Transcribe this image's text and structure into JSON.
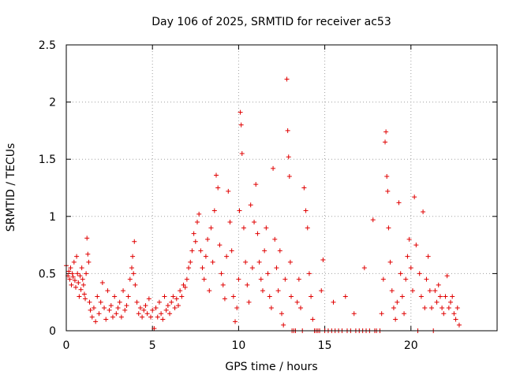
{
  "chart_data": {
    "type": "scatter",
    "title": "Day 106 of 2025, SRMTID for receiver ac53",
    "xlabel": "GPS time / hours",
    "ylabel": "SRMTID / TECUs",
    "xlim": [
      0,
      25
    ],
    "ylim": [
      0,
      2.5
    ],
    "xticks": [
      "0",
      "5",
      "10",
      "15",
      "20"
    ],
    "yticks": [
      "0",
      "0.5",
      "1",
      "1.5",
      "2",
      "2.5"
    ],
    "grid": true,
    "marker": "plus",
    "color": "#e00000",
    "series": [
      {
        "name": "SRMTID",
        "points": [
          [
            0.0,
            0.57
          ],
          [
            0.1,
            0.48
          ],
          [
            0.15,
            0.52
          ],
          [
            0.2,
            0.45
          ],
          [
            0.25,
            0.55
          ],
          [
            0.3,
            0.4
          ],
          [
            0.35,
            0.5
          ],
          [
            0.4,
            0.47
          ],
          [
            0.45,
            0.6
          ],
          [
            0.5,
            0.44
          ],
          [
            0.55,
            0.38
          ],
          [
            0.6,
            0.65
          ],
          [
            0.65,
            0.5
          ],
          [
            0.7,
            0.42
          ],
          [
            0.75,
            0.3
          ],
          [
            0.8,
            0.48
          ],
          [
            0.85,
            0.36
          ],
          [
            0.9,
            0.55
          ],
          [
            0.95,
            0.45
          ],
          [
            1.0,
            0.4
          ],
          [
            1.05,
            0.32
          ],
          [
            1.1,
            0.28
          ],
          [
            1.15,
            0.5
          ],
          [
            1.2,
            0.81
          ],
          [
            1.25,
            0.67
          ],
          [
            1.3,
            0.6
          ],
          [
            1.35,
            0.25
          ],
          [
            1.4,
            0.18
          ],
          [
            1.5,
            0.12
          ],
          [
            1.6,
            0.2
          ],
          [
            1.7,
            0.08
          ],
          [
            1.8,
            0.3
          ],
          [
            1.9,
            0.15
          ],
          [
            2.0,
            0.25
          ],
          [
            2.1,
            0.42
          ],
          [
            2.2,
            0.2
          ],
          [
            2.3,
            0.1
          ],
          [
            2.4,
            0.35
          ],
          [
            2.5,
            0.18
          ],
          [
            2.6,
            0.22
          ],
          [
            2.7,
            0.12
          ],
          [
            2.8,
            0.3
          ],
          [
            2.9,
            0.15
          ],
          [
            3.0,
            0.2
          ],
          [
            3.1,
            0.25
          ],
          [
            3.2,
            0.12
          ],
          [
            3.3,
            0.35
          ],
          [
            3.4,
            0.18
          ],
          [
            3.5,
            0.22
          ],
          [
            3.6,
            0.3
          ],
          [
            3.7,
            0.45
          ],
          [
            3.8,
            0.55
          ],
          [
            3.85,
            0.65
          ],
          [
            3.9,
            0.5
          ],
          [
            3.95,
            0.78
          ],
          [
            4.0,
            0.4
          ],
          [
            4.1,
            0.25
          ],
          [
            4.2,
            0.15
          ],
          [
            4.3,
            0.2
          ],
          [
            4.4,
            0.12
          ],
          [
            4.5,
            0.18
          ],
          [
            4.6,
            0.22
          ],
          [
            4.7,
            0.15
          ],
          [
            4.8,
            0.28
          ],
          [
            4.9,
            0.12
          ],
          [
            5.0,
            0.18
          ],
          [
            5.1,
            0.02
          ],
          [
            5.2,
            0.2
          ],
          [
            5.3,
            0.12
          ],
          [
            5.4,
            0.25
          ],
          [
            5.5,
            0.15
          ],
          [
            5.6,
            0.1
          ],
          [
            5.7,
            0.3
          ],
          [
            5.8,
            0.18
          ],
          [
            5.9,
            0.22
          ],
          [
            6.0,
            0.15
          ],
          [
            6.1,
            0.25
          ],
          [
            6.2,
            0.3
          ],
          [
            6.3,
            0.2
          ],
          [
            6.4,
            0.28
          ],
          [
            6.5,
            0.22
          ],
          [
            6.6,
            0.35
          ],
          [
            6.7,
            0.3
          ],
          [
            6.8,
            0.4
          ],
          [
            6.9,
            0.38
          ],
          [
            7.0,
            0.45
          ],
          [
            7.1,
            0.55
          ],
          [
            7.2,
            0.6
          ],
          [
            7.3,
            0.7
          ],
          [
            7.4,
            0.85
          ],
          [
            7.5,
            0.78
          ],
          [
            7.6,
            0.95
          ],
          [
            7.7,
            1.02
          ],
          [
            7.8,
            0.7
          ],
          [
            7.9,
            0.55
          ],
          [
            8.0,
            0.45
          ],
          [
            8.1,
            0.65
          ],
          [
            8.2,
            0.8
          ],
          [
            8.3,
            0.35
          ],
          [
            8.4,
            0.9
          ],
          [
            8.5,
            0.6
          ],
          [
            8.6,
            1.05
          ],
          [
            8.7,
            1.36
          ],
          [
            8.8,
            1.25
          ],
          [
            8.9,
            0.75
          ],
          [
            9.0,
            0.5
          ],
          [
            9.1,
            0.4
          ],
          [
            9.2,
            0.28
          ],
          [
            9.3,
            0.65
          ],
          [
            9.4,
            1.22
          ],
          [
            9.5,
            0.95
          ],
          [
            9.6,
            0.7
          ],
          [
            9.7,
            0.3
          ],
          [
            9.8,
            0.08
          ],
          [
            9.9,
            0.2
          ],
          [
            10.0,
            0.45
          ],
          [
            10.05,
            1.05
          ],
          [
            10.1,
            1.91
          ],
          [
            10.15,
            1.8
          ],
          [
            10.2,
            1.55
          ],
          [
            10.3,
            0.9
          ],
          [
            10.4,
            0.6
          ],
          [
            10.5,
            0.4
          ],
          [
            10.6,
            0.25
          ],
          [
            10.7,
            1.1
          ],
          [
            10.8,
            0.55
          ],
          [
            10.9,
            0.95
          ],
          [
            11.0,
            1.28
          ],
          [
            11.1,
            0.85
          ],
          [
            11.2,
            0.6
          ],
          [
            11.3,
            0.45
          ],
          [
            11.4,
            0.35
          ],
          [
            11.5,
            0.7
          ],
          [
            11.6,
            0.9
          ],
          [
            11.7,
            0.5
          ],
          [
            11.8,
            0.3
          ],
          [
            11.9,
            0.2
          ],
          [
            12.0,
            1.42
          ],
          [
            12.1,
            0.8
          ],
          [
            12.2,
            0.55
          ],
          [
            12.3,
            0.35
          ],
          [
            12.4,
            0.7
          ],
          [
            12.5,
            0.15
          ],
          [
            12.6,
            0.05
          ],
          [
            12.7,
            0.45
          ],
          [
            12.8,
            2.2
          ],
          [
            12.85,
            1.75
          ],
          [
            12.9,
            1.52
          ],
          [
            12.95,
            1.35
          ],
          [
            13.0,
            0.6
          ],
          [
            13.05,
            0.3
          ],
          [
            13.1,
            0.0
          ],
          [
            13.2,
            0.0
          ],
          [
            13.3,
            0.0
          ],
          [
            13.4,
            0.25
          ],
          [
            13.5,
            0.45
          ],
          [
            13.6,
            0.2
          ],
          [
            13.7,
            0.0
          ],
          [
            13.8,
            1.25
          ],
          [
            13.9,
            1.05
          ],
          [
            14.0,
            0.9
          ],
          [
            14.1,
            0.5
          ],
          [
            14.2,
            0.3
          ],
          [
            14.3,
            0.1
          ],
          [
            14.4,
            0.0
          ],
          [
            14.5,
            0.0
          ],
          [
            14.6,
            0.0
          ],
          [
            14.7,
            0.0
          ],
          [
            14.8,
            0.35
          ],
          [
            14.9,
            0.62
          ],
          [
            15.0,
            0.0
          ],
          [
            15.2,
            0.0
          ],
          [
            15.4,
            0.0
          ],
          [
            15.5,
            0.25
          ],
          [
            15.6,
            0.0
          ],
          [
            15.8,
            0.0
          ],
          [
            16.0,
            0.0
          ],
          [
            16.2,
            0.3
          ],
          [
            16.3,
            0.0
          ],
          [
            16.5,
            0.0
          ],
          [
            16.7,
            0.15
          ],
          [
            16.8,
            0.0
          ],
          [
            17.0,
            0.0
          ],
          [
            17.2,
            0.0
          ],
          [
            17.3,
            0.55
          ],
          [
            17.4,
            0.0
          ],
          [
            17.6,
            0.0
          ],
          [
            17.8,
            0.97
          ],
          [
            17.9,
            0.0
          ],
          [
            18.0,
            0.0
          ],
          [
            18.2,
            0.0
          ],
          [
            18.3,
            0.15
          ],
          [
            18.4,
            0.45
          ],
          [
            18.5,
            1.65
          ],
          [
            18.55,
            1.74
          ],
          [
            18.6,
            1.35
          ],
          [
            18.65,
            1.22
          ],
          [
            18.7,
            0.9
          ],
          [
            18.8,
            0.6
          ],
          [
            18.9,
            0.35
          ],
          [
            19.0,
            0.2
          ],
          [
            19.1,
            0.1
          ],
          [
            19.2,
            0.25
          ],
          [
            19.3,
            1.12
          ],
          [
            19.4,
            0.5
          ],
          [
            19.5,
            0.3
          ],
          [
            19.6,
            0.15
          ],
          [
            19.7,
            0.45
          ],
          [
            19.8,
            0.65
          ],
          [
            19.9,
            0.8
          ],
          [
            20.0,
            0.55
          ],
          [
            20.1,
            0.35
          ],
          [
            20.2,
            1.17
          ],
          [
            20.3,
            0.75
          ],
          [
            20.4,
            0.0
          ],
          [
            20.5,
            0.5
          ],
          [
            20.6,
            0.3
          ],
          [
            20.7,
            1.04
          ],
          [
            20.8,
            0.2
          ],
          [
            20.9,
            0.45
          ],
          [
            21.0,
            0.65
          ],
          [
            21.1,
            0.35
          ],
          [
            21.2,
            0.2
          ],
          [
            21.3,
            0.0
          ],
          [
            21.4,
            0.35
          ],
          [
            21.5,
            0.25
          ],
          [
            21.6,
            0.4
          ],
          [
            21.7,
            0.3
          ],
          [
            21.8,
            0.2
          ],
          [
            21.9,
            0.15
          ],
          [
            22.0,
            0.3
          ],
          [
            22.1,
            0.48
          ],
          [
            22.2,
            0.2
          ],
          [
            22.3,
            0.25
          ],
          [
            22.4,
            0.3
          ],
          [
            22.5,
            0.15
          ],
          [
            22.6,
            0.1
          ],
          [
            22.7,
            0.2
          ],
          [
            22.8,
            0.05
          ]
        ]
      }
    ]
  }
}
